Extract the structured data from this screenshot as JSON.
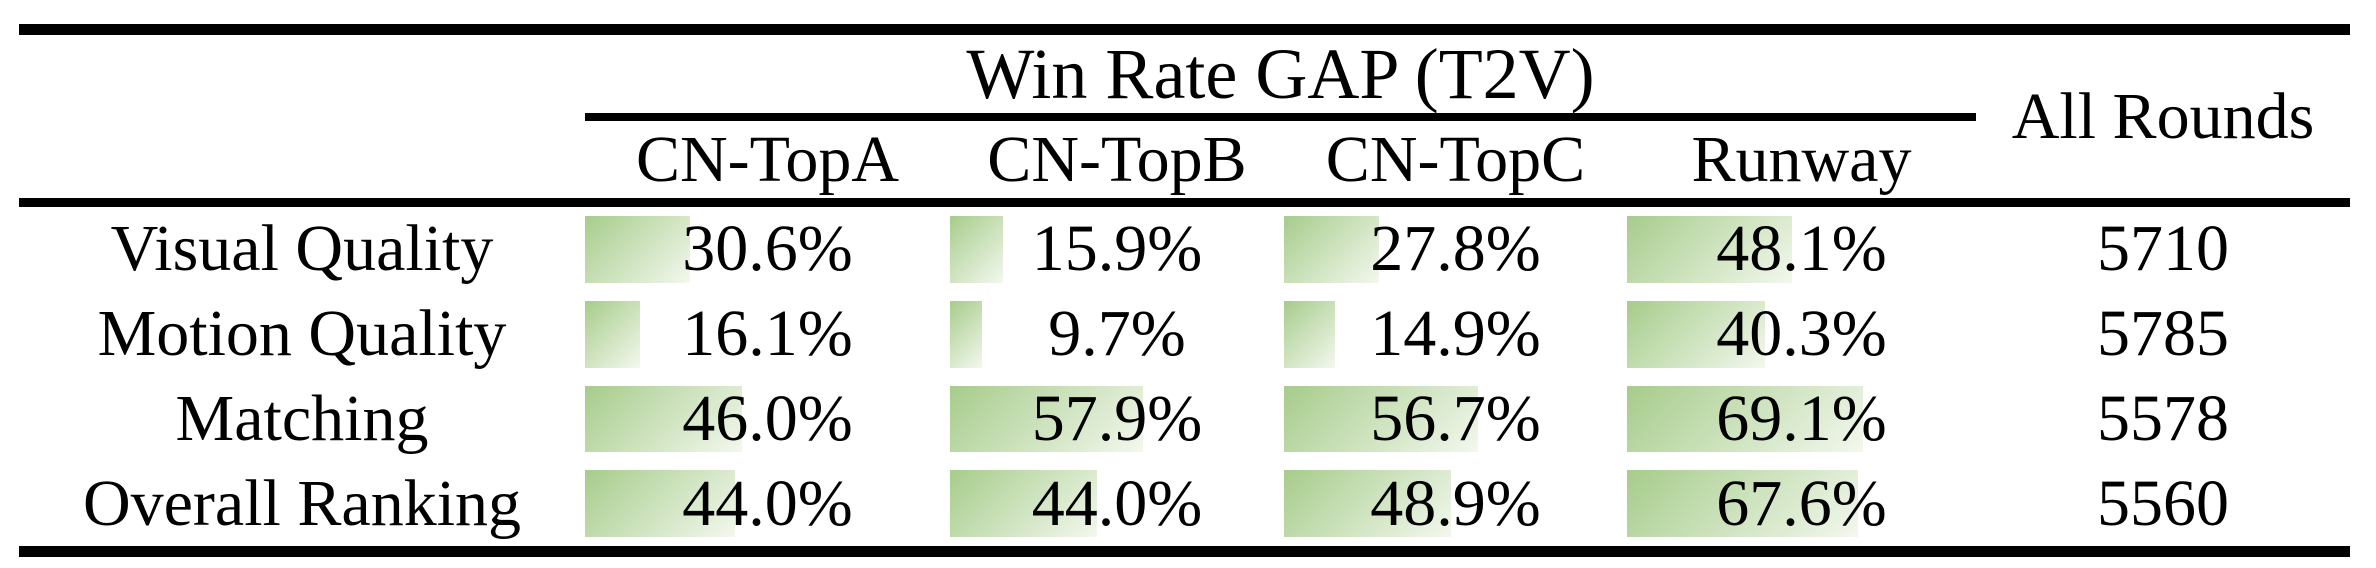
{
  "table": {
    "title": "Win Rate GAP (T2V)",
    "corner_header": "All Rounds",
    "model_columns": [
      "CN-TopA",
      "CN-TopB",
      "CN-TopC",
      "Runway"
    ],
    "rows": [
      {
        "label": "Visual Quality",
        "values": [
          "30.6%",
          "15.9%",
          "27.8%",
          "48.1%"
        ],
        "all_rounds": "5710"
      },
      {
        "label": "Motion Quality",
        "values": [
          "16.1%",
          "9.7%",
          "14.9%",
          "40.3%"
        ],
        "all_rounds": "5785"
      },
      {
        "label": "Matching",
        "values": [
          "46.0%",
          "57.9%",
          "56.7%",
          "69.1%"
        ],
        "all_rounds": "5578"
      },
      {
        "label": "Overall Ranking",
        "values": [
          "44.0%",
          "44.0%",
          "48.9%",
          "67.6%"
        ],
        "all_rounds": "5560"
      }
    ],
    "colors": {
      "bar_green": "#a6cc8b",
      "bar_fade": "#f3f8ee",
      "rule": "#000000"
    }
  }
}
